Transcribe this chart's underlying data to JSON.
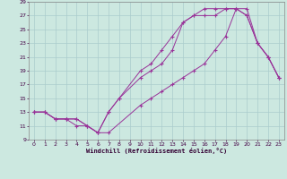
{
  "bg_color": "#cce8e0",
  "grid_color": "#aacccc",
  "line_color": "#993399",
  "xlabel": "Windchill (Refroidissement éolien,°C)",
  "xlim": [
    -0.5,
    23.5
  ],
  "ylim": [
    9,
    29
  ],
  "xticks": [
    0,
    1,
    2,
    3,
    4,
    5,
    6,
    7,
    8,
    9,
    10,
    11,
    12,
    13,
    14,
    15,
    16,
    17,
    18,
    19,
    20,
    21,
    22,
    23
  ],
  "yticks": [
    9,
    11,
    13,
    15,
    17,
    19,
    21,
    23,
    25,
    27,
    29
  ],
  "series": [
    {
      "x": [
        0,
        1,
        2,
        3,
        4,
        5,
        6,
        7,
        8,
        10,
        11,
        12,
        13,
        14,
        15,
        16,
        17,
        18,
        19,
        20,
        21,
        22,
        23
      ],
      "y": [
        13,
        13,
        12,
        12,
        12,
        11,
        10,
        13,
        15,
        18,
        19,
        20,
        22,
        26,
        27,
        27,
        27,
        28,
        28,
        27,
        23,
        21,
        18
      ]
    },
    {
      "x": [
        0,
        1,
        2,
        3,
        4,
        5,
        6,
        7,
        10,
        11,
        12,
        13,
        14,
        15,
        16,
        17,
        18,
        19,
        20,
        21,
        22,
        23
      ],
      "y": [
        13,
        13,
        12,
        12,
        11,
        11,
        10,
        10,
        14,
        15,
        16,
        17,
        18,
        19,
        20,
        22,
        24,
        28,
        27,
        23,
        21,
        18
      ]
    },
    {
      "x": [
        0,
        1,
        2,
        3,
        4,
        5,
        6,
        7,
        8,
        10,
        11,
        12,
        13,
        14,
        15,
        16,
        17,
        18,
        19,
        20,
        21,
        22,
        23
      ],
      "y": [
        13,
        13,
        12,
        12,
        12,
        11,
        10,
        13,
        15,
        19,
        20,
        22,
        24,
        26,
        27,
        28,
        28,
        28,
        28,
        28,
        23,
        21,
        18
      ]
    }
  ]
}
